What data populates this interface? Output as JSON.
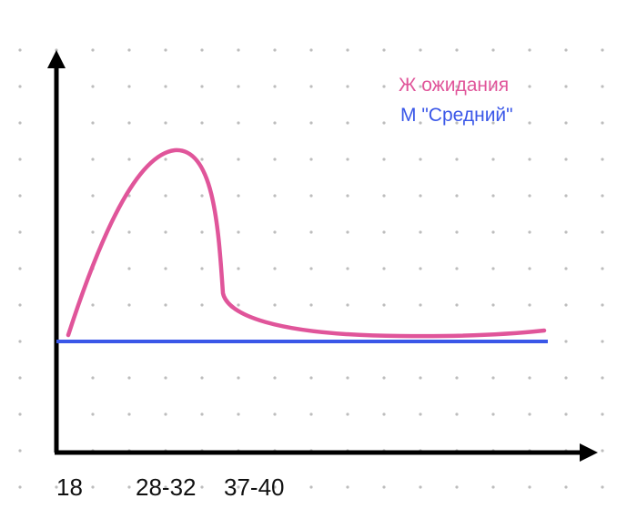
{
  "legend": [
    {
      "label": "Ж ожидания",
      "color": "#e0559a"
    },
    {
      "label": "М \"Средний\"",
      "color": "#3a57e8"
    }
  ],
  "x_labels": [
    "18",
    "28-32",
    "37-40"
  ],
  "colors": {
    "axis": "#000000",
    "grid_dot": "#bdbdbd"
  }
}
